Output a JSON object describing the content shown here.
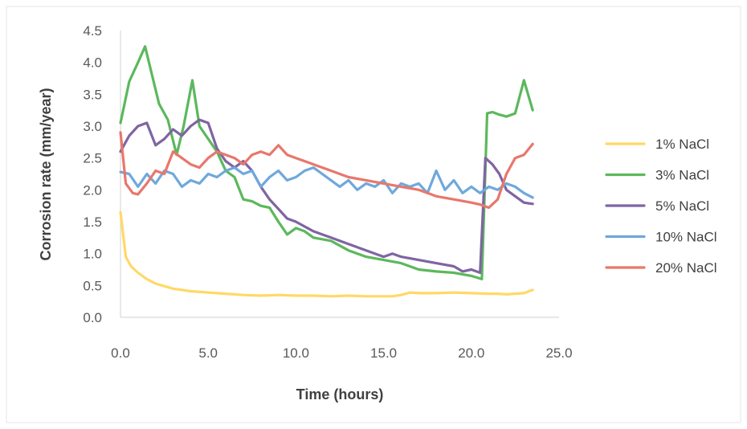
{
  "chart_data": {
    "type": "line",
    "title": "",
    "xlabel": "Time (hours)",
    "ylabel": "Corrosion rate (mm/year)",
    "xlim": [
      0,
      25
    ],
    "ylim": [
      0,
      4.5
    ],
    "xticks": [
      0,
      5,
      10,
      15,
      20,
      25
    ],
    "xtick_labels": [
      "0.0",
      "5.0",
      "10.0",
      "15.0",
      "20.0",
      "25.0"
    ],
    "yticks": [
      0,
      0.5,
      1,
      1.5,
      2,
      2.5,
      3,
      3.5,
      4,
      4.5
    ],
    "ytick_labels": [
      "0.0",
      "0.5",
      "1.0",
      "1.5",
      "2.0",
      "2.5",
      "3.0",
      "3.5",
      "4.0",
      "4.5"
    ],
    "grid": false,
    "legend_position": "right",
    "series": [
      {
        "name": "1% NaCl",
        "color": "#FFD966",
        "x": [
          0,
          0.3,
          0.6,
          1,
          1.5,
          2,
          3,
          4,
          5,
          6,
          7,
          8,
          9,
          10,
          11,
          12,
          13,
          14,
          15,
          15.5,
          16,
          16.5,
          17,
          18,
          19,
          20,
          21,
          21.5,
          22,
          22.5,
          23,
          23.5
        ],
        "y": [
          1.65,
          0.95,
          0.8,
          0.7,
          0.6,
          0.53,
          0.45,
          0.41,
          0.39,
          0.37,
          0.35,
          0.34,
          0.35,
          0.34,
          0.34,
          0.33,
          0.34,
          0.33,
          0.33,
          0.33,
          0.35,
          0.39,
          0.38,
          0.38,
          0.39,
          0.38,
          0.37,
          0.37,
          0.36,
          0.37,
          0.38,
          0.43
        ]
      },
      {
        "name": "3% NaCl",
        "color": "#5CB85C",
        "x": [
          0,
          0.5,
          1,
          1.4,
          1.8,
          2.2,
          2.7,
          3.2,
          3.6,
          4.1,
          4.5,
          5,
          5.5,
          6,
          6.5,
          7,
          7.5,
          8,
          8.5,
          9,
          9.5,
          10,
          10.5,
          11,
          12,
          13,
          14,
          15,
          16,
          17,
          18,
          19,
          20,
          20.6,
          20.9,
          21.2,
          21.6,
          22,
          22.5,
          23,
          23.5
        ],
        "y": [
          3.05,
          3.7,
          4.0,
          4.25,
          3.8,
          3.35,
          3.1,
          2.55,
          3.0,
          3.72,
          3.0,
          2.8,
          2.6,
          2.3,
          2.2,
          1.85,
          1.82,
          1.75,
          1.72,
          1.5,
          1.3,
          1.4,
          1.35,
          1.25,
          1.2,
          1.05,
          0.95,
          0.9,
          0.85,
          0.75,
          0.72,
          0.7,
          0.65,
          0.6,
          3.2,
          3.22,
          3.18,
          3.15,
          3.2,
          3.72,
          3.25
        ]
      },
      {
        "name": "5% NaCl",
        "color": "#8064A2",
        "x": [
          0,
          0.5,
          1,
          1.5,
          2,
          2.5,
          3,
          3.5,
          4,
          4.5,
          5,
          5.5,
          6,
          6.5,
          7,
          7.5,
          8,
          8.5,
          9,
          9.5,
          10,
          11,
          12,
          13,
          14,
          15,
          15.5,
          16,
          17,
          18,
          19,
          19.5,
          20,
          20.5,
          20.8,
          21.2,
          21.6,
          22,
          22.5,
          23,
          23.5
        ],
        "y": [
          2.6,
          2.85,
          3.0,
          3.05,
          2.7,
          2.8,
          2.95,
          2.85,
          3.0,
          3.1,
          3.05,
          2.65,
          2.45,
          2.35,
          2.45,
          2.3,
          2.05,
          1.85,
          1.7,
          1.55,
          1.5,
          1.35,
          1.25,
          1.15,
          1.05,
          0.95,
          1.0,
          0.95,
          0.9,
          0.85,
          0.8,
          0.72,
          0.75,
          0.7,
          2.5,
          2.4,
          2.25,
          2.0,
          1.9,
          1.8,
          1.78
        ]
      },
      {
        "name": "10% NaCl",
        "color": "#6FA8DC",
        "x": [
          0,
          0.5,
          1,
          1.5,
          2,
          2.5,
          3,
          3.5,
          4,
          4.5,
          5,
          5.5,
          6,
          6.5,
          7,
          7.5,
          8,
          8.5,
          9,
          9.5,
          10,
          10.5,
          11,
          11.5,
          12,
          12.5,
          13,
          13.5,
          14,
          14.5,
          15,
          15.5,
          16,
          16.5,
          17,
          17.5,
          18,
          18.5,
          19,
          19.5,
          20,
          20.5,
          21,
          21.5,
          22,
          22.5,
          23,
          23.5
        ],
        "y": [
          2.28,
          2.25,
          2.05,
          2.25,
          2.1,
          2.3,
          2.25,
          2.05,
          2.15,
          2.1,
          2.25,
          2.2,
          2.3,
          2.35,
          2.25,
          2.3,
          2.05,
          2.2,
          2.3,
          2.15,
          2.2,
          2.3,
          2.35,
          2.25,
          2.15,
          2.05,
          2.15,
          2.0,
          2.1,
          2.05,
          2.15,
          1.95,
          2.1,
          2.05,
          2.1,
          1.95,
          2.3,
          2.0,
          2.15,
          1.95,
          2.05,
          1.95,
          2.05,
          2.0,
          2.1,
          2.05,
          1.95,
          1.88
        ]
      },
      {
        "name": "20% NaCl",
        "color": "#E8776B",
        "x": [
          0,
          0.3,
          0.7,
          1,
          1.5,
          2,
          2.5,
          3,
          3.5,
          4,
          4.5,
          5,
          5.5,
          6,
          6.5,
          7,
          7.5,
          8,
          8.5,
          9,
          9.5,
          10,
          10.5,
          11,
          12,
          13,
          14,
          15,
          16,
          17,
          18,
          19,
          20,
          20.5,
          21,
          21.5,
          22,
          22.5,
          23,
          23.5
        ],
        "y": [
          2.9,
          2.1,
          1.95,
          1.93,
          2.1,
          2.3,
          2.25,
          2.6,
          2.5,
          2.4,
          2.35,
          2.5,
          2.6,
          2.55,
          2.5,
          2.4,
          2.55,
          2.6,
          2.55,
          2.7,
          2.55,
          2.5,
          2.45,
          2.4,
          2.3,
          2.2,
          2.15,
          2.1,
          2.05,
          2.0,
          1.9,
          1.85,
          1.8,
          1.77,
          1.72,
          1.85,
          2.25,
          2.5,
          2.55,
          2.72
        ]
      }
    ]
  }
}
